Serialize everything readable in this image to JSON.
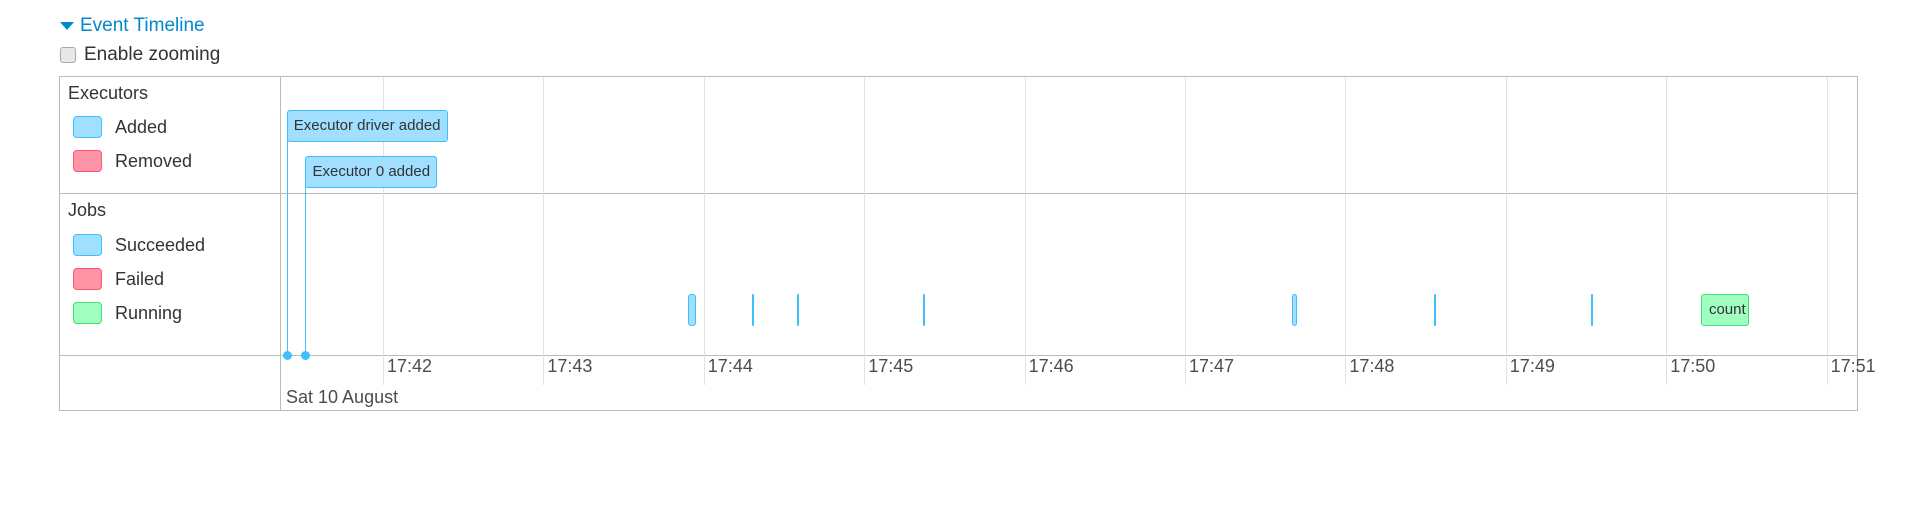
{
  "header": {
    "title": "Event Timeline",
    "icon": "triangle-down-icon",
    "enable_zooming_label": "Enable zooming",
    "enable_zooming_checked": false
  },
  "legend": {
    "executors": {
      "title": "Executors",
      "items": [
        {
          "label": "Added",
          "fill": "#A0DFFF",
          "border": "#3EC0FF"
        },
        {
          "label": "Removed",
          "fill": "#FF94A6",
          "border": "#FF5475"
        }
      ]
    },
    "jobs": {
      "title": "Jobs",
      "items": [
        {
          "label": "Succeeded",
          "fill": "#A0DFFF",
          "border": "#3EC0FF"
        },
        {
          "label": "Failed",
          "fill": "#FF94A6",
          "border": "#FF5475"
        },
        {
          "label": "Running",
          "fill": "#A0FFC0",
          "border": "#3EE06E"
        }
      ]
    }
  },
  "axis": {
    "ticks": [
      "17:42",
      "17:43",
      "17:44",
      "17:45",
      "17:46",
      "17:47",
      "17:48",
      "17:49",
      "17:50",
      "17:51"
    ],
    "date_label": "Sat 10 August"
  },
  "executor_events": [
    {
      "label": "Executor driver added",
      "time": "17:41:24",
      "status": "added"
    },
    {
      "label": "Executor 0 added",
      "time": "17:41:31",
      "status": "added"
    }
  ],
  "jobs": [
    {
      "start": "17:43:54",
      "end": "17:43:57",
      "status": "succeeded",
      "label": ""
    },
    {
      "start": "17:44:18",
      "end": "17:44:18",
      "status": "succeeded",
      "label": ""
    },
    {
      "start": "17:44:35",
      "end": "17:44:35",
      "status": "succeeded",
      "label": ""
    },
    {
      "start": "17:45:22",
      "end": "17:45:22",
      "status": "succeeded",
      "label": ""
    },
    {
      "start": "17:47:40",
      "end": "17:47:42",
      "status": "succeeded",
      "label": ""
    },
    {
      "start": "17:48:33",
      "end": "17:48:33",
      "status": "succeeded",
      "label": ""
    },
    {
      "start": "17:49:32",
      "end": "17:49:32",
      "status": "succeeded",
      "label": ""
    },
    {
      "start": "17:50:13",
      "end": "17:50:31",
      "status": "running",
      "label": "count"
    }
  ]
}
